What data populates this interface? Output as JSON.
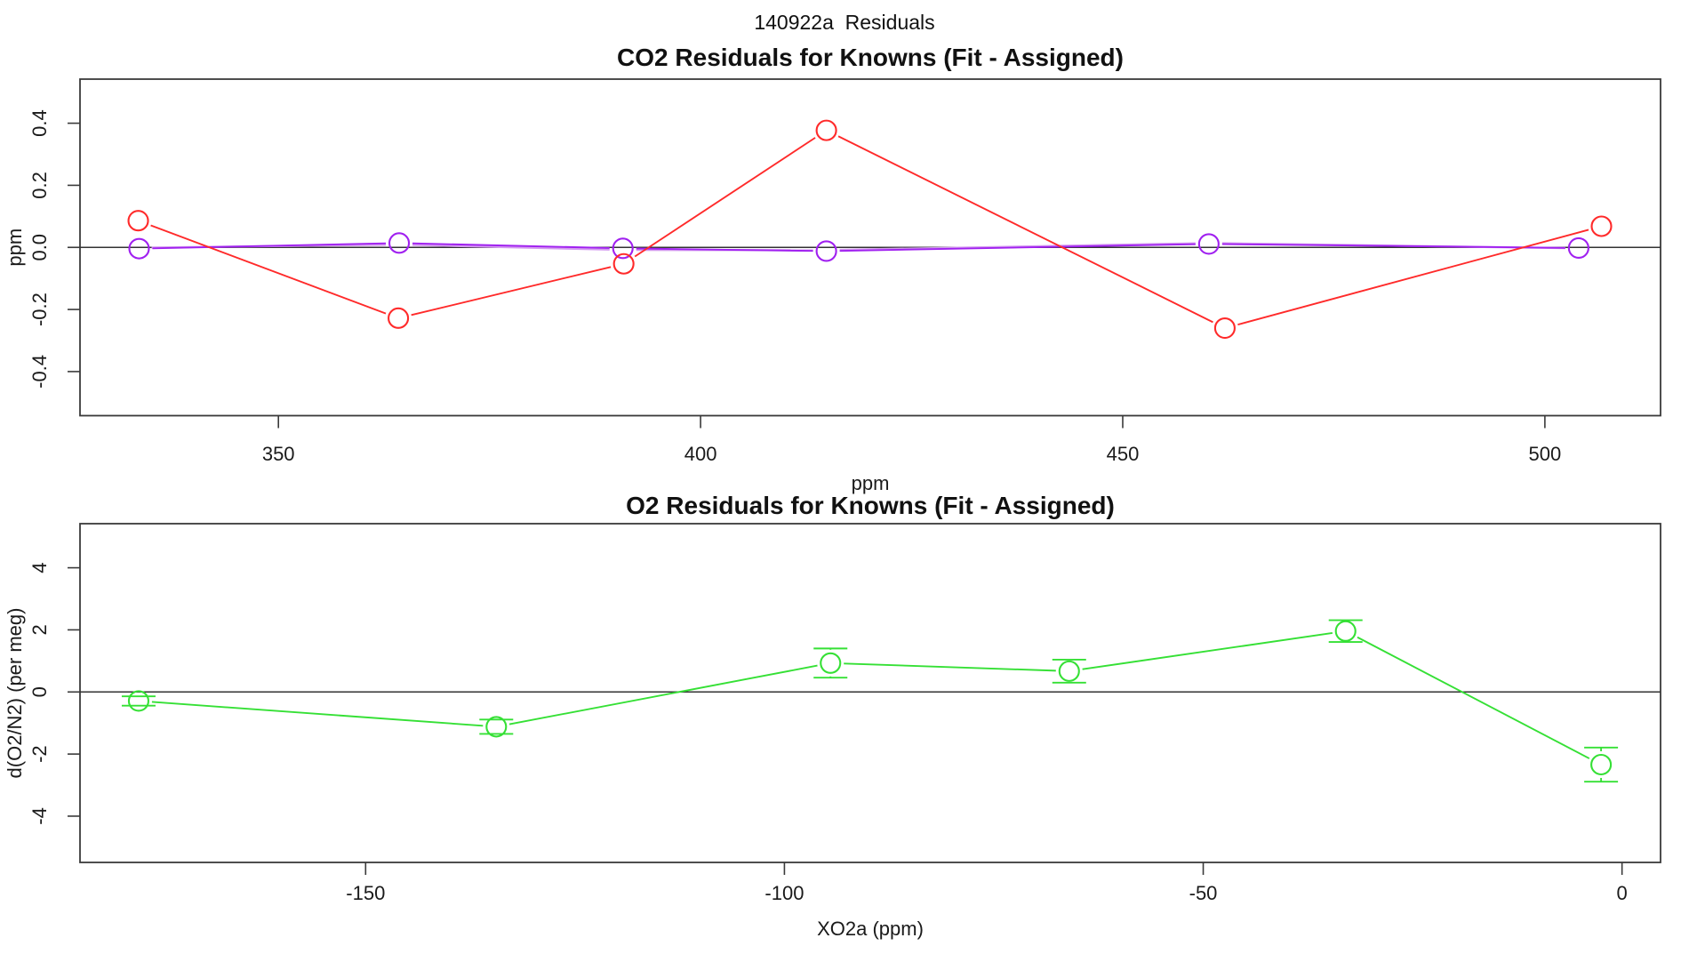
{
  "page_title": "140922a  Residuals",
  "chart_data": [
    {
      "type": "line",
      "title": "CO2 Residuals for Knowns (Fit - Assigned)",
      "xlabel": "ppm",
      "ylabel": "ppm",
      "xlim": [
        326.5,
        513.7
      ],
      "ylim": [
        -0.542,
        0.542
      ],
      "xticks": [
        350,
        400,
        450,
        500
      ],
      "xtick_labels": [
        "350",
        "400",
        "450",
        "500"
      ],
      "yticks": [
        -0.4,
        -0.2,
        0.0,
        0.2,
        0.4
      ],
      "ytick_labels": [
        "-0.4",
        "-0.2",
        "0.0",
        "0.2",
        "0.4"
      ],
      "refline_y": 0,
      "legend": null,
      "grid": false,
      "series": [
        {
          "name": "violet-trend-series",
          "color": "#d49af0",
          "marker": null,
          "gaps": true,
          "width": 2.4,
          "x": [
            333.4,
            364.3,
            390.8,
            414.9,
            460.2,
            504.0
          ],
          "y": [
            -0.001,
            0.009,
            -0.008,
            -0.009,
            0.014,
            -0.003
          ]
        },
        {
          "name": "purple-co2-series",
          "color": "#a020f0",
          "marker": "circle",
          "gaps": true,
          "width": 1.9,
          "x": [
            333.5,
            364.3,
            390.8,
            414.9,
            460.2,
            504.0
          ],
          "y": [
            -0.004,
            0.014,
            -0.003,
            -0.012,
            0.011,
            -0.002
          ]
        },
        {
          "name": "red-co2-series",
          "color": "#ff2a2a",
          "marker": "circle",
          "gaps": true,
          "width": 1.9,
          "x": [
            333.4,
            364.2,
            390.9,
            414.9,
            462.1,
            506.7
          ],
          "y": [
            0.086,
            -0.228,
            -0.053,
            0.377,
            -0.26,
            0.068
          ]
        }
      ]
    },
    {
      "type": "line",
      "title": "O2 Residuals for Knowns (Fit - Assigned)",
      "xlabel": "XO2a (ppm)",
      "ylabel": "d(O2/N2) (per meg)",
      "xlim": [
        -184.1,
        4.6
      ],
      "ylim": [
        -5.49,
        5.42
      ],
      "xticks": [
        -150,
        -100,
        -50,
        0
      ],
      "xtick_labels": [
        "-150",
        "-100",
        "-50",
        "0"
      ],
      "yticks": [
        -4,
        -2,
        0,
        2,
        4
      ],
      "ytick_labels": [
        "-4",
        "-2",
        "0",
        "2",
        "4"
      ],
      "refline_y": 0,
      "legend": null,
      "grid": false,
      "series": [
        {
          "name": "green-o2-series",
          "color": "#35e035",
          "marker": "circle",
          "gaps": true,
          "width": 1.9,
          "x": [
            -177.1,
            -134.4,
            -94.5,
            -66.0,
            -33.0,
            -2.5
          ],
          "y": [
            -0.29,
            -1.12,
            0.93,
            0.67,
            1.96,
            -2.34
          ],
          "yerr": [
            0.15,
            0.23,
            0.47,
            0.37,
            0.35,
            0.55
          ]
        }
      ]
    }
  ]
}
